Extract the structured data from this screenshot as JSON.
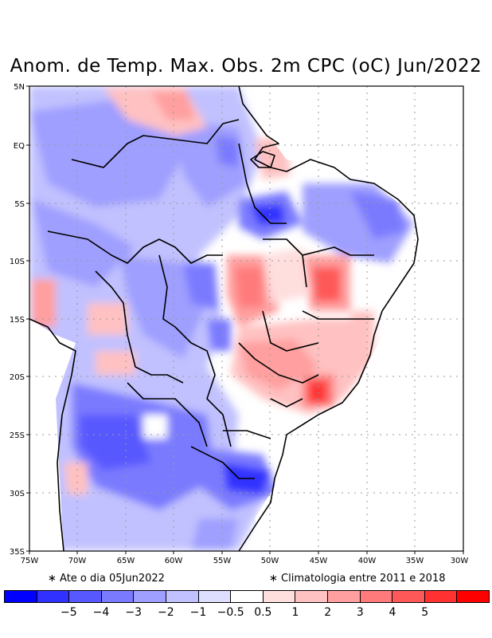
{
  "title": "Anom. de Temp. Max. Obs. 2m CPC (oC) Jun/2022",
  "notes": {
    "left": "∗ Ate o dia 05Jun2022",
    "right": "∗ Climatologia entre 2011 e 2018"
  },
  "axes": {
    "lat_labels": [
      "5N",
      "EQ",
      "5S",
      "10S",
      "15S",
      "20S",
      "25S",
      "30S",
      "35S"
    ],
    "lon_labels": [
      "75W",
      "70W",
      "65W",
      "60W",
      "55W",
      "50W",
      "45W",
      "40W",
      "35W",
      "30W"
    ]
  },
  "colorbar": {
    "colors": [
      "#0000ff",
      "#3131ff",
      "#5858ff",
      "#7a7aff",
      "#9f9fff",
      "#c1c1ff",
      "#dedeff",
      "#ffffff",
      "#ffdede",
      "#ffc1c1",
      "#ff9f9f",
      "#ff7a7a",
      "#ff5858",
      "#ff3131",
      "#ff0000"
    ],
    "labels": [
      "−5",
      "−4",
      "−3",
      "−2",
      "−1",
      "−0.5",
      "0.5",
      "1",
      "2",
      "3",
      "4",
      "5"
    ]
  },
  "colors": {
    "grid": "#9a9a9a",
    "coast": "#000000"
  }
}
